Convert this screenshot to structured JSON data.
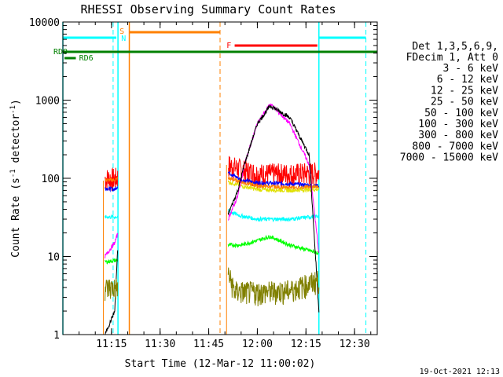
{
  "chart_data": {
    "type": "line",
    "title": "RHESSI Observing Summary Count Rates",
    "xlabel": "Start Time (12-Mar-12 11:00:02)",
    "ylabel_main": "Count Rate (s",
    "ylabel_sup1": "-1",
    "ylabel_mid": " detector",
    "ylabel_sup2": "-1",
    "ylabel_end": ")",
    "yscale": "log",
    "ylim": [
      1,
      10000
    ],
    "xlim_minutes": [
      0,
      97
    ],
    "x_ticks": [
      {
        "m": 15,
        "label": "11:15"
      },
      {
        "m": 30,
        "label": "11:30"
      },
      {
        "m": 45,
        "label": "11:45"
      },
      {
        "m": 60,
        "label": "12:00"
      },
      {
        "m": 75,
        "label": "12:15"
      },
      {
        "m": 90,
        "label": "12:30"
      }
    ],
    "y_ticks": [
      {
        "v": 1,
        "label": "1"
      },
      {
        "v": 10,
        "label": "10"
      },
      {
        "v": 100,
        "label": "100"
      },
      {
        "v": 1000,
        "label": "1000"
      },
      {
        "v": 10000,
        "label": "10000"
      }
    ],
    "legend_header": [
      "Det 1,3,5,6,9,",
      "FDecim 1, Att 0"
    ],
    "legend": [
      {
        "name": "3 - 6 keV",
        "color": "#000000"
      },
      {
        "name": "6 - 12 keV",
        "color": "#ff00ff"
      },
      {
        "name": "12 - 25 keV",
        "color": "#00ff00"
      },
      {
        "name": "25 - 50 keV",
        "color": "#00ffff"
      },
      {
        "name": "50 - 100 keV",
        "color": "#e0e000"
      },
      {
        "name": "100 - 300 keV",
        "color": "#ff0000"
      },
      {
        "name": "300 - 800 keV",
        "color": "#0000ff"
      },
      {
        "name": "800 - 7000 keV",
        "color": "#ff8000"
      },
      {
        "name": "7000 - 15000 keV",
        "color": "#808000"
      }
    ],
    "series_segments": [
      {
        "name": "100 - 300 keV",
        "color": "#ff0000",
        "points": [
          [
            13,
            100
          ],
          [
            16,
            100
          ],
          [
            17,
            105
          ],
          [
            51,
            150
          ],
          [
            55,
            130
          ],
          [
            60,
            115
          ],
          [
            70,
            115
          ],
          [
            79,
            120
          ]
        ]
      },
      {
        "name": "300 - 800 keV",
        "color": "#0000ff",
        "points": [
          [
            13,
            75
          ],
          [
            16,
            72
          ],
          [
            17,
            80
          ],
          [
            51,
            120
          ],
          [
            55,
            95
          ],
          [
            60,
            88
          ],
          [
            70,
            85
          ],
          [
            79,
            80
          ]
        ]
      },
      {
        "name": "800 - 7000 keV",
        "color": "#ff8000",
        "points": [
          [
            13,
            95
          ],
          [
            16,
            95
          ],
          [
            17,
            100
          ],
          [
            51,
            100
          ],
          [
            55,
            90
          ],
          [
            60,
            80
          ],
          [
            70,
            75
          ],
          [
            79,
            78
          ]
        ]
      },
      {
        "name": "50 - 100 keV",
        "color": "#e0e000",
        "points": [
          [
            51,
            90
          ],
          [
            55,
            80
          ],
          [
            60,
            72
          ],
          [
            70,
            70
          ],
          [
            79,
            72
          ]
        ]
      },
      {
        "name": "25 - 50 keV",
        "color": "#00ffff",
        "points": [
          [
            13,
            32
          ],
          [
            17,
            32
          ],
          [
            51,
            38
          ],
          [
            55,
            33
          ],
          [
            60,
            30
          ],
          [
            70,
            30
          ],
          [
            79,
            33
          ]
        ]
      },
      {
        "name": "12 - 25 keV",
        "color": "#00ff00",
        "points": [
          [
            13,
            8.5
          ],
          [
            17,
            9
          ],
          [
            51,
            14
          ],
          [
            55,
            14
          ],
          [
            60,
            16
          ],
          [
            64,
            18
          ],
          [
            70,
            14
          ],
          [
            79,
            11
          ]
        ]
      },
      {
        "name": "6 - 12 keV",
        "color": "#ff00ff",
        "points": [
          [
            13,
            10
          ],
          [
            16,
            15
          ],
          [
            17,
            20
          ],
          [
            51,
            30
          ],
          [
            54,
            60
          ],
          [
            56,
            150
          ],
          [
            60,
            500
          ],
          [
            64,
            900
          ],
          [
            70,
            500
          ],
          [
            76,
            150
          ],
          [
            79,
            11
          ]
        ]
      },
      {
        "name": "3 - 6 keV",
        "color": "#000000",
        "points": [
          [
            13,
            1
          ],
          [
            16,
            2
          ],
          [
            17,
            15
          ],
          [
            51,
            35
          ],
          [
            54,
            70
          ],
          [
            56,
            150
          ],
          [
            60,
            500
          ],
          [
            64,
            850
          ],
          [
            70,
            600
          ],
          [
            76,
            200
          ],
          [
            79,
            2
          ]
        ]
      },
      {
        "name": "7000 - 15000 keV",
        "color": "#808000",
        "points": [
          [
            13,
            4
          ],
          [
            17,
            4
          ],
          [
            51,
            6
          ],
          [
            53,
            3.6
          ],
          [
            60,
            3.5
          ],
          [
            70,
            3.7
          ],
          [
            79,
            5
          ]
        ]
      }
    ],
    "annotations": {
      "saa_label": "S",
      "night_label": "N",
      "flare_label": "F",
      "rd0_label": "RD0",
      "rd6_label": "RD6"
    }
  },
  "footer_date": "19-Oct-2021 12:13"
}
